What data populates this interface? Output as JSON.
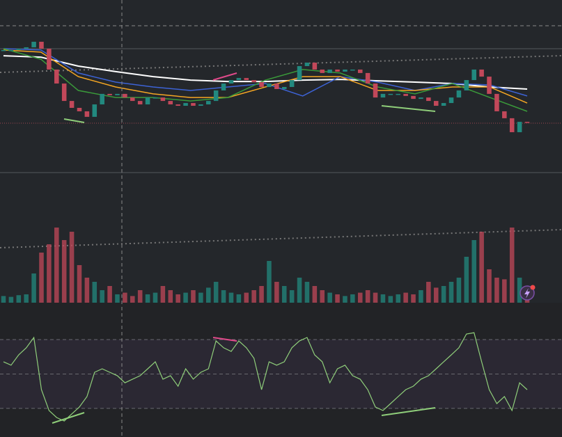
{
  "chart_data": [
    {
      "type": "candlestick",
      "ylim": [
        0,
        100
      ],
      "up_color": "#22897f",
      "down_color": "#c2485a",
      "close": [
        71.0,
        71.0,
        71.8,
        72.6,
        75.8,
        71.8,
        59.7,
        51.6,
        41.5,
        37.5,
        35.5,
        32.3,
        39.5,
        45.6,
        44.8,
        45.6,
        43.5,
        41.5,
        39.5,
        43.5,
        43.5,
        41.5,
        39.5,
        38.7,
        40.3,
        38.7,
        39.5,
        41.5,
        47.6,
        51.6,
        53.6,
        54.8,
        53.6,
        52.4,
        49.6,
        51.6,
        48.4,
        49.6,
        53.6,
        61.7,
        63.7,
        59.7,
        57.7,
        59.7,
        58.5,
        59.7,
        59.7,
        57.7,
        51.6,
        43.5,
        45.6,
        45.6,
        45.6,
        44.4,
        42.7,
        43.5,
        41.5,
        38.7,
        40.3,
        43.5,
        47.6,
        53.6,
        59.7,
        55.6,
        45.6,
        35.5,
        31.5,
        23.4,
        29.4,
        29.0
      ],
      "series": [
        {
          "color": "#ffffff",
          "values": [
            67.7,
            66.9,
            61.7,
            58.5,
            55.6,
            53.6,
            52.8,
            52.8,
            53.6,
            54.0,
            53.2,
            52.4,
            51.6,
            49.6,
            48.4
          ]
        },
        {
          "color": "#3d63d6",
          "values": [
            71.8,
            71.0,
            57.7,
            52.4,
            49.6,
            47.6,
            49.6,
            51.6,
            44.4,
            55.6,
            52.4,
            47.6,
            51.6,
            50.8,
            44.4
          ]
        },
        {
          "color": "#f5a623",
          "values": [
            71.0,
            69.8,
            55.6,
            49.6,
            45.6,
            43.5,
            43.5,
            49.6,
            55.6,
            55.6,
            47.6,
            47.6,
            49.6,
            49.6,
            40.3
          ]
        },
        {
          "color": "#3a9a3a",
          "values": [
            71.8,
            65.7,
            47.6,
            43.5,
            43.5,
            41.5,
            43.5,
            53.6,
            59.7,
            57.7,
            49.6,
            45.6,
            51.6,
            43.5,
            35.5
          ]
        }
      ]
    },
    {
      "type": "bar",
      "ylim": [
        0,
        100
      ],
      "values": [
        8,
        7,
        9,
        10,
        35,
        60,
        70,
        90,
        75,
        85,
        45,
        30,
        25,
        15,
        20,
        10,
        12,
        8,
        15,
        10,
        12,
        20,
        15,
        10,
        12,
        15,
        12,
        18,
        25,
        15,
        12,
        10,
        12,
        15,
        20,
        50,
        25,
        20,
        15,
        30,
        25,
        20,
        15,
        12,
        10,
        8,
        10,
        12,
        15,
        12,
        10,
        8,
        10,
        12,
        10,
        15,
        25,
        18,
        20,
        25,
        30,
        55,
        75,
        85,
        40,
        30,
        28,
        90,
        30,
        15
      ]
    },
    {
      "type": "line",
      "ylim": [
        13.4,
        91.4
      ],
      "levels": [
        70,
        50,
        30
      ],
      "color": "#8fce7a",
      "values": [
        57.1,
        55.1,
        61.1,
        65.2,
        71.2,
        40.9,
        28.8,
        24.7,
        22.7,
        26.8,
        30.8,
        36.9,
        51.0,
        53.0,
        51.0,
        49.0,
        44.9,
        47.0,
        49.0,
        53.0,
        57.1,
        47.0,
        49.0,
        42.9,
        53.0,
        47.0,
        51.0,
        53.0,
        69.2,
        65.2,
        63.1,
        69.2,
        65.2,
        59.1,
        40.9,
        57.1,
        55.1,
        57.1,
        65.2,
        69.2,
        71.2,
        61.1,
        57.1,
        44.9,
        53.0,
        55.1,
        49.0,
        47.0,
        40.9,
        30.8,
        28.8,
        32.8,
        36.9,
        40.9,
        42.9,
        47.0,
        49.0,
        53.0,
        57.1,
        61.1,
        65.2,
        73.2,
        74.0,
        57.1,
        40.9,
        32.8,
        36.9,
        28.8,
        44.9,
        40.9
      ]
    }
  ]
}
